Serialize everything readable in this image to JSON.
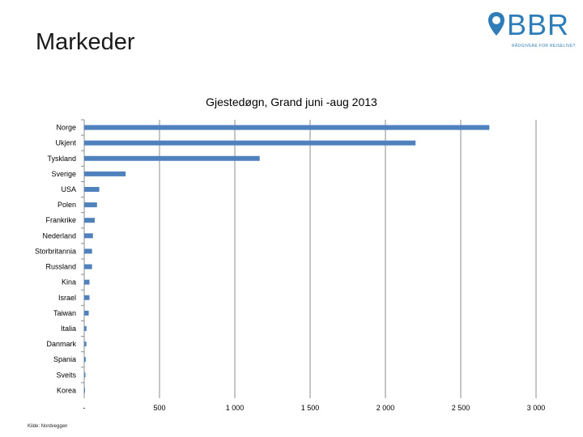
{
  "slide": {
    "title": "Markeder",
    "source": "Kilde: Nordveggen"
  },
  "logo": {
    "text": "BBR",
    "tagline": "RÅDGIVERE FOR REISELIVET",
    "color": "#2f7db8"
  },
  "chart_data": {
    "type": "bar",
    "orientation": "horizontal",
    "title": "Gjestedøgn, Grand juni -aug 2013",
    "categories": [
      "Norge",
      "Ukjent",
      "Tyskland",
      "Sverige",
      "USA",
      "Polen",
      "Frankrike",
      "Nederland",
      "Storbritannia",
      "Russland",
      "Kina",
      "Israel",
      "Taiwan",
      "Italia",
      "Danmark",
      "Spania",
      "Sveits",
      "Korea"
    ],
    "values": [
      2690,
      2200,
      1165,
      275,
      100,
      85,
      70,
      58,
      52,
      52,
      35,
      35,
      30,
      15,
      14,
      10,
      8,
      5
    ],
    "xlim": [
      0,
      3000
    ],
    "xticks": [
      0,
      500,
      1000,
      1500,
      2000,
      2500,
      3000
    ],
    "xtick_labels": [
      "-",
      "500",
      "1 000",
      "1 500",
      "2 000",
      "2 500",
      "3 000"
    ],
    "bar_color": "#4f81bd",
    "grid": true
  }
}
